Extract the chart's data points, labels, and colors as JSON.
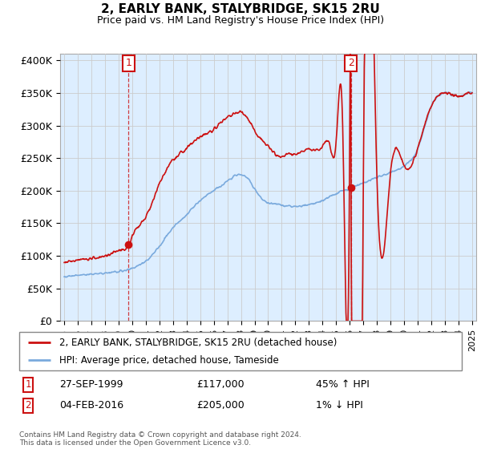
{
  "title": "2, EARLY BANK, STALYBRIDGE, SK15 2RU",
  "subtitle": "Price paid vs. HM Land Registry's House Price Index (HPI)",
  "ylabel_ticks": [
    "£0",
    "£50K",
    "£100K",
    "£150K",
    "£200K",
    "£250K",
    "£300K",
    "£350K",
    "£400K"
  ],
  "ytick_values": [
    0,
    50000,
    100000,
    150000,
    200000,
    250000,
    300000,
    350000,
    400000
  ],
  "ylim": [
    0,
    410000
  ],
  "xlim_start": 1994.7,
  "xlim_end": 2025.3,
  "hpi_color": "#7aaadd",
  "price_color": "#cc1111",
  "annotation_box_color": "#cc1111",
  "legend_label_price": "2, EARLY BANK, STALYBRIDGE, SK15 2RU (detached house)",
  "legend_label_hpi": "HPI: Average price, detached house, Tameside",
  "transaction1_date": "27-SEP-1999",
  "transaction1_price": 117000,
  "transaction1_pct": "45% ↑ HPI",
  "transaction1_year": 1999.74,
  "transaction2_date": "04-FEB-2016",
  "transaction2_price": 205000,
  "transaction2_pct": "1% ↓ HPI",
  "transaction2_year": 2016.09,
  "footer": "Contains HM Land Registry data © Crown copyright and database right 2024.\nThis data is licensed under the Open Government Licence v3.0.",
  "bg_fill_color": "#ddeeff",
  "grid_color": "#cccccc"
}
